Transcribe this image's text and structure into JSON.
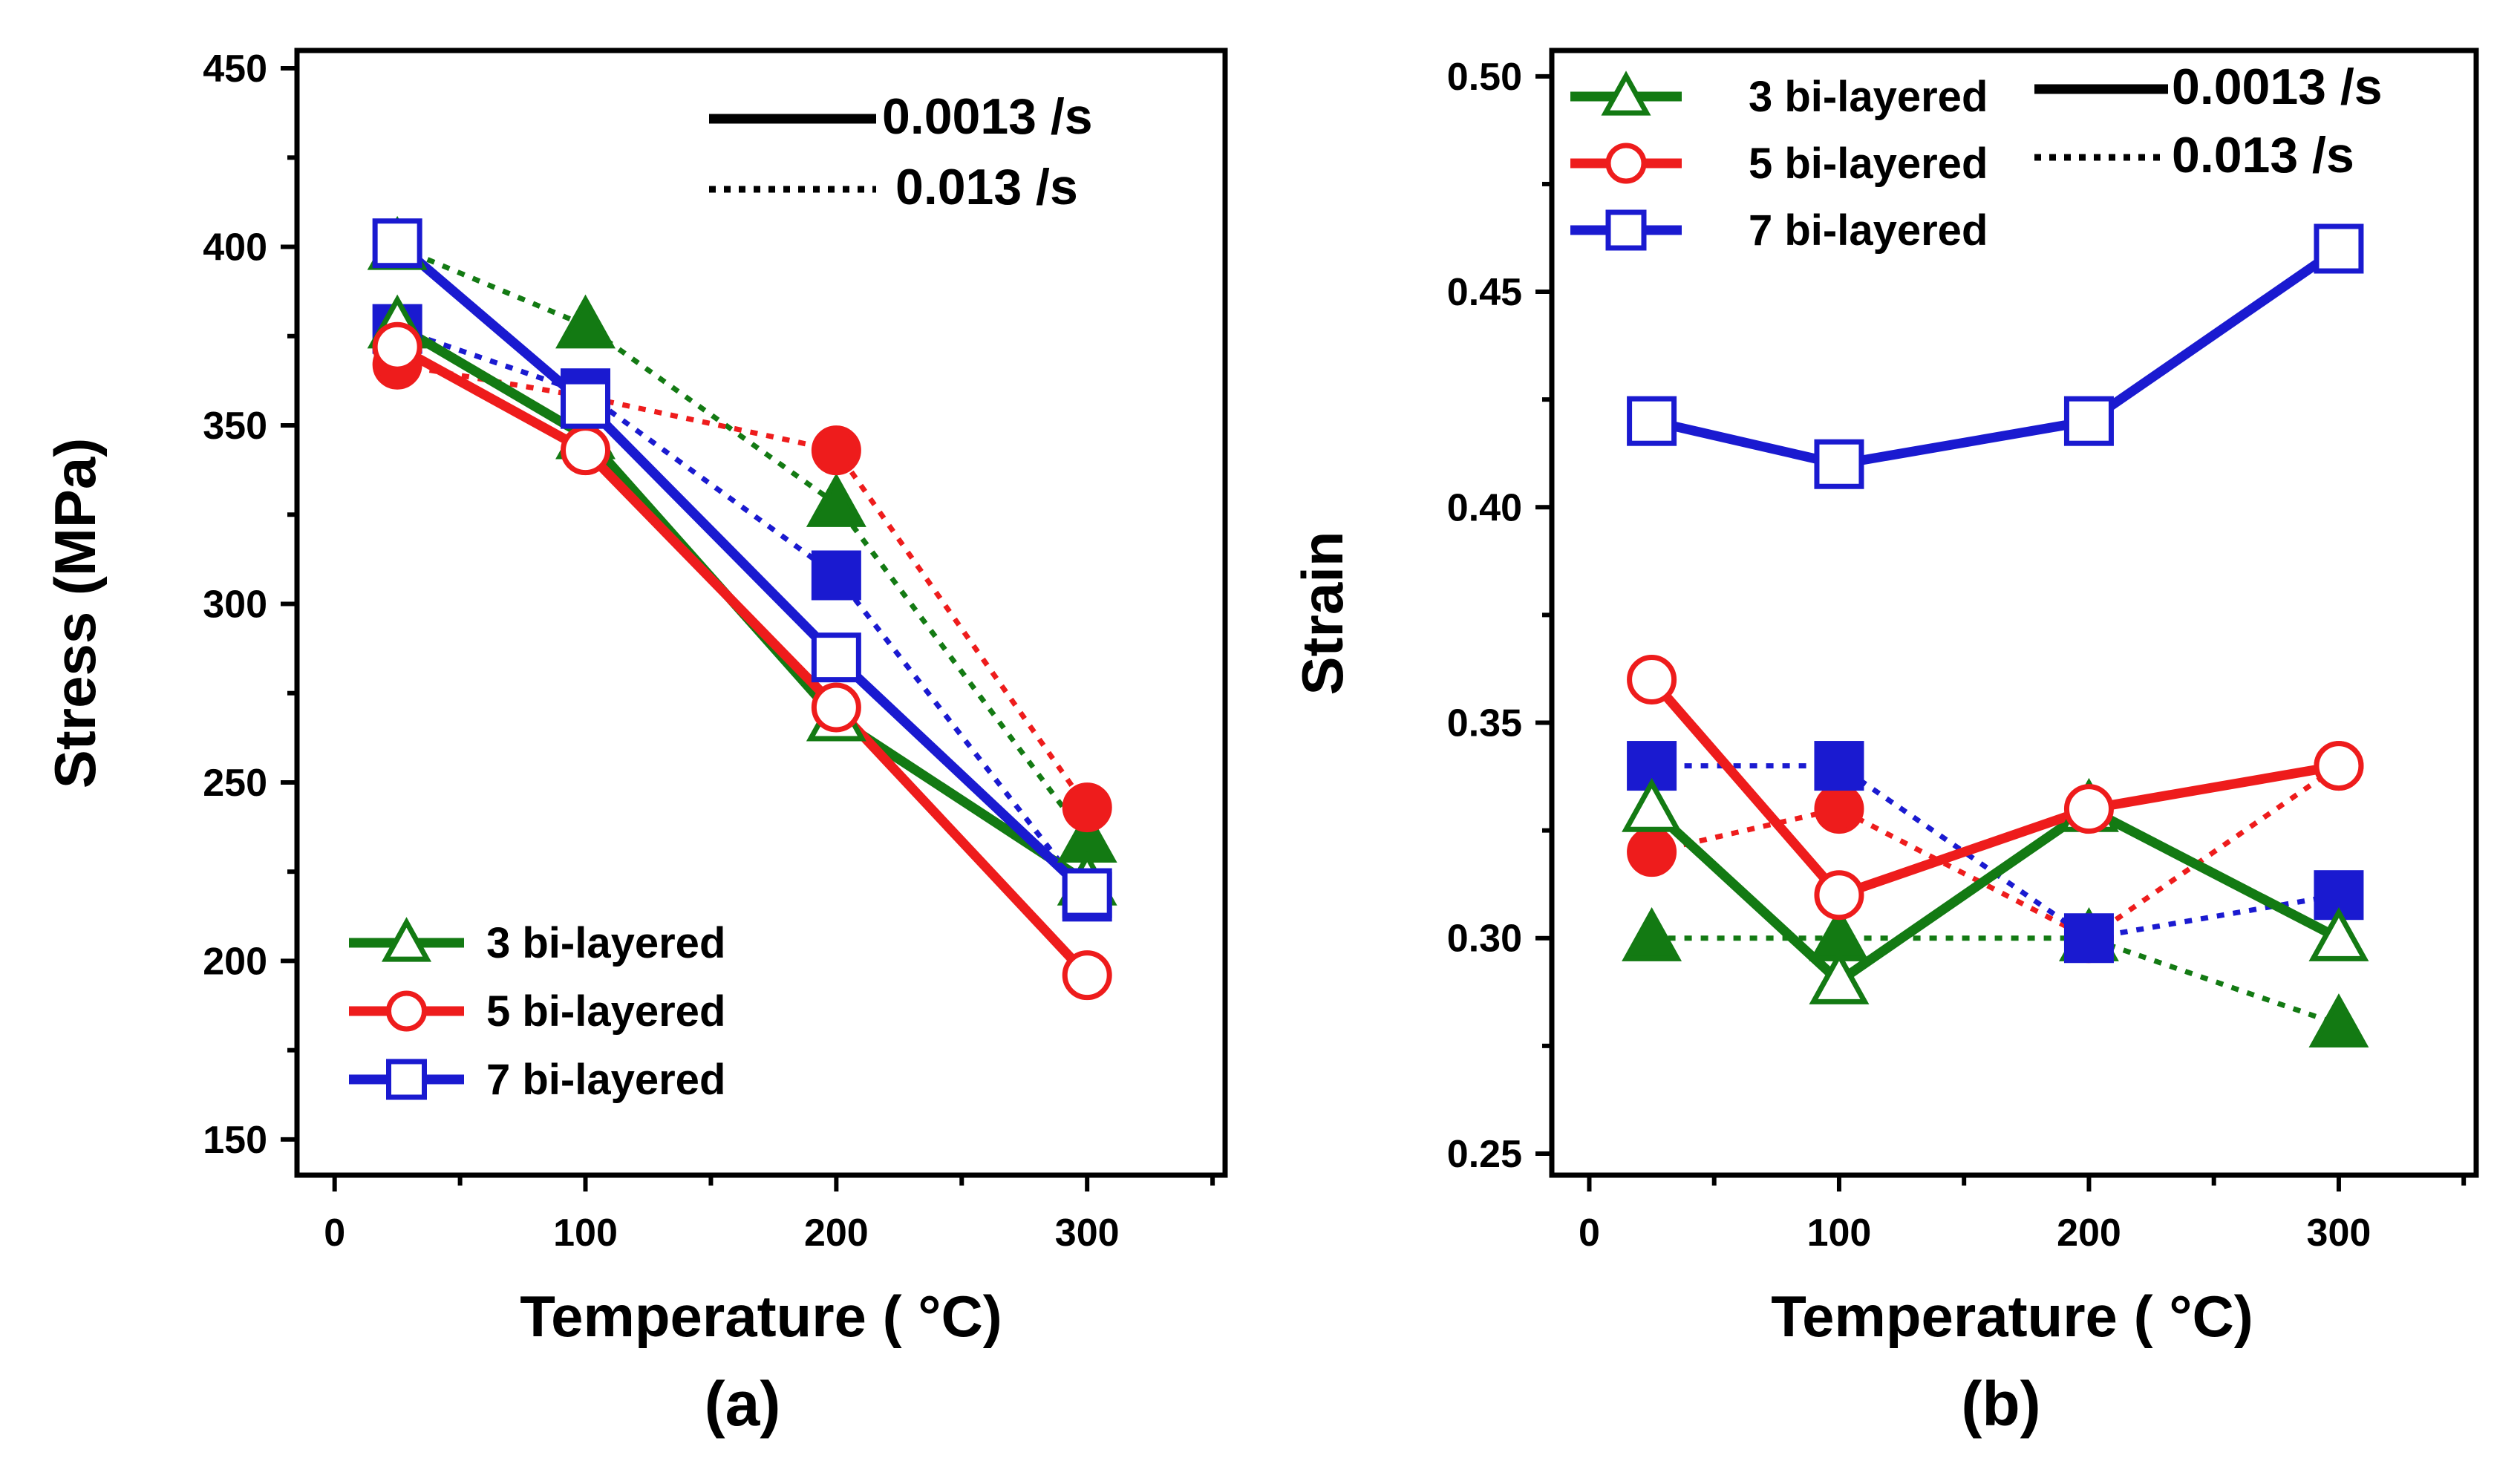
{
  "chart_data": [
    {
      "type": "line",
      "panel_label": "(a)",
      "xlabel": "Temperature ( °C)",
      "ylabel": "Stress (MPa)",
      "xlim": [
        -15,
        355
      ],
      "ylim": [
        140,
        455
      ],
      "xticks": [
        0,
        100,
        200,
        300
      ],
      "yticks": [
        150,
        200,
        250,
        300,
        350,
        400,
        450
      ],
      "x": [
        25,
        100,
        200,
        300
      ],
      "rate_legend": [
        {
          "style": "solid",
          "label": "0.0013 /s"
        },
        {
          "style": "dotted",
          "label": "0.013 /s"
        }
      ],
      "legend_position": "bottom-left",
      "series": [
        {
          "name": "3 bi-layered",
          "color": "#137a13",
          "marker": "triangle",
          "rate": "0.0013 /s",
          "style": "solid",
          "fill": "open",
          "values": [
            378,
            347,
            268,
            222
          ]
        },
        {
          "name": "3 bi-layered",
          "color": "#137a13",
          "marker": "triangle",
          "rate": "0.013 /s",
          "style": "dotted",
          "fill": "filled",
          "values": [
            400,
            378,
            328,
            234
          ]
        },
        {
          "name": "5 bi-layered",
          "color": "#ee1c1c",
          "marker": "circle",
          "rate": "0.0013 /s",
          "style": "solid",
          "fill": "open",
          "values": [
            372,
            343,
            271,
            196
          ]
        },
        {
          "name": "5 bi-layered",
          "color": "#ee1c1c",
          "marker": "circle",
          "rate": "0.013 /s",
          "style": "dotted",
          "fill": "filled",
          "values": [
            367,
            358,
            343,
            243
          ]
        },
        {
          "name": "7 bi-layered",
          "color": "#1a1ad0",
          "marker": "square",
          "rate": "0.0013 /s",
          "style": "solid",
          "fill": "open",
          "values": [
            401,
            356,
            285,
            219
          ]
        },
        {
          "name": "7 bi-layered",
          "color": "#1a1ad0",
          "marker": "square",
          "rate": "0.013 /s",
          "style": "dotted",
          "fill": "filled",
          "values": [
            377,
            359,
            308,
            218
          ]
        }
      ]
    },
    {
      "type": "line",
      "panel_label": "(b)",
      "xlabel": "Temperature ( °C)",
      "ylabel": "Strain",
      "xlim": [
        -15,
        355
      ],
      "ylim": [
        0.245,
        0.506
      ],
      "xticks": [
        0,
        100,
        200,
        300
      ],
      "yticks": [
        0.25,
        0.3,
        0.35,
        0.4,
        0.45,
        0.5
      ],
      "ytick_labels": [
        "0.25",
        "0.30",
        "0.35",
        "0.40",
        "0.45",
        "0.50"
      ],
      "x": [
        25,
        100,
        200,
        300
      ],
      "rate_legend": [
        {
          "style": "solid",
          "label": "0.0013 /s"
        },
        {
          "style": "dotted",
          "label": "0.013 /s"
        }
      ],
      "legend_position": "top-left",
      "series": [
        {
          "name": "3 bi-layered",
          "color": "#137a13",
          "marker": "triangle",
          "rate": "0.0013 /s",
          "style": "solid",
          "fill": "open",
          "values": [
            0.33,
            0.29,
            0.33,
            0.3
          ]
        },
        {
          "name": "3 bi-layered",
          "color": "#137a13",
          "marker": "triangle",
          "rate": "0.013 /s",
          "style": "dotted",
          "fill": "filled",
          "values": [
            0.3,
            0.3,
            0.3,
            0.28
          ]
        },
        {
          "name": "5 bi-layered",
          "color": "#ee1c1c",
          "marker": "circle",
          "rate": "0.0013 /s",
          "style": "solid",
          "fill": "open",
          "values": [
            0.36,
            0.31,
            0.33,
            0.34
          ]
        },
        {
          "name": "5 bi-layered",
          "color": "#ee1c1c",
          "marker": "circle",
          "rate": "0.013 /s",
          "style": "dotted",
          "fill": "filled",
          "values": [
            0.32,
            0.33,
            0.3,
            0.34
          ]
        },
        {
          "name": "7 bi-layered",
          "color": "#1a1ad0",
          "marker": "square",
          "rate": "0.0013 /s",
          "style": "solid",
          "fill": "open",
          "values": [
            0.42,
            0.41,
            0.42,
            0.46
          ]
        },
        {
          "name": "7 bi-layered",
          "color": "#1a1ad0",
          "marker": "square",
          "rate": "0.013 /s",
          "style": "dotted",
          "fill": "filled",
          "values": [
            0.34,
            0.34,
            0.3,
            0.31
          ]
        }
      ]
    }
  ]
}
